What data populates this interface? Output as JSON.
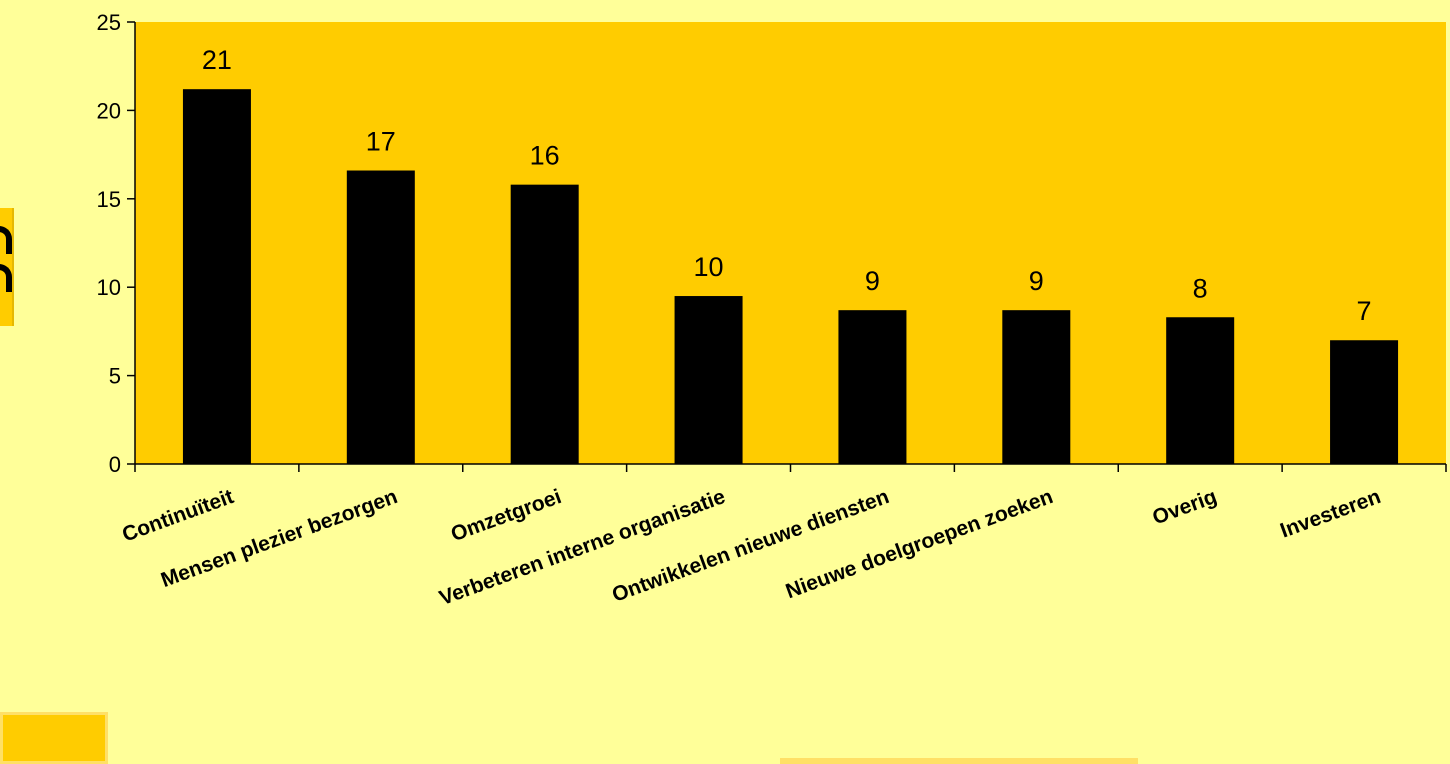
{
  "colors": {
    "background": "#FFFF99",
    "plot_area": "#FFCC00",
    "bar": "#000000",
    "axis": "#000000"
  },
  "chart_data": {
    "type": "bar",
    "categories": [
      "Continuïteit",
      "Mensen plezier bezorgen",
      "Omzetgroei",
      "Verbeteren interne organisatie",
      "Ontwikkelen nieuwe diensten",
      "Nieuwe doelgroepen zoeken",
      "Overig",
      "Investeren"
    ],
    "values": [
      21.2,
      16.6,
      15.8,
      9.5,
      8.7,
      8.7,
      8.3,
      7.0
    ],
    "data_labels": [
      "21",
      "17",
      "16",
      "10",
      "9",
      "9",
      "8",
      "7"
    ],
    "ylim": [
      0,
      25
    ],
    "yticks": [
      0,
      5,
      10,
      15,
      20,
      25
    ],
    "title": "",
    "xlabel": "",
    "ylabel": "",
    "grid": false,
    "legend": "none"
  }
}
